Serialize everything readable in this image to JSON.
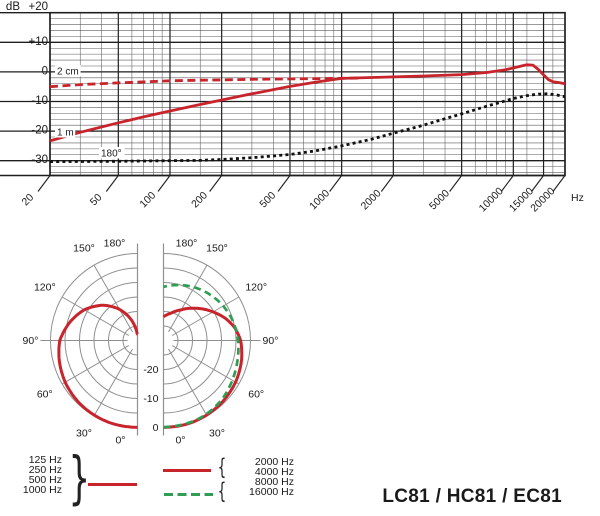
{
  "title": "LC81 / HC81 / EC81",
  "colors": {
    "red": "#c8242c",
    "green": "#2f9e54",
    "grid_major": "#1f1f1f",
    "grid_minor": "#5c5c5c",
    "polar_grid": "#8f8f8f",
    "text": "#1a1a1a",
    "background": "#ffffff"
  },
  "chart_data": [
    {
      "type": "line",
      "title": "Frequency response",
      "x_scale": "log",
      "xlim": [
        20,
        20000
      ],
      "ylim": [
        -35,
        20
      ],
      "xlabel": "Hz",
      "ylabel": "dB",
      "grid": true,
      "y_major_values": [
        20,
        10,
        0,
        -10,
        -20,
        -30
      ],
      "y_tick_labels": [
        "+20",
        "+10",
        "0",
        "-10",
        "-20",
        "-30"
      ],
      "x_ticks": [
        20,
        50,
        100,
        200,
        500,
        1000,
        2000,
        5000,
        10000,
        15000,
        20000
      ],
      "x_tick_labels": [
        "20",
        "50",
        "100",
        "200",
        "500",
        "1000",
        "2000",
        "5000",
        "10000",
        "15000",
        "20000"
      ],
      "x_minor_ticks": [
        30,
        40,
        60,
        70,
        80,
        90,
        150,
        300,
        400,
        600,
        700,
        800,
        900,
        1500,
        3000,
        4000,
        6000,
        7000,
        8000,
        9000,
        12000,
        17000
      ],
      "series": [
        {
          "name": "2 cm",
          "style": "dashed",
          "color": "#c8242c",
          "points": [
            [
              20,
              -5
            ],
            [
              30,
              -4.3
            ],
            [
              50,
              -3.7
            ],
            [
              100,
              -3
            ],
            [
              150,
              -2.8
            ],
            [
              200,
              -2.7
            ],
            [
              300,
              -2.5
            ],
            [
              500,
              -2.35
            ],
            [
              700,
              -2.25
            ],
            [
              1000,
              -2.15
            ],
            [
              1300,
              -2.05
            ]
          ]
        },
        {
          "name": "1 m",
          "style": "solid",
          "color": "#c8242c",
          "points": [
            [
              20,
              -23.3
            ],
            [
              30,
              -20.4
            ],
            [
              50,
              -17.2
            ],
            [
              70,
              -15.2
            ],
            [
              100,
              -13.2
            ],
            [
              150,
              -11
            ],
            [
              200,
              -9.5
            ],
            [
              300,
              -7.4
            ],
            [
              500,
              -4.9
            ],
            [
              700,
              -3.5
            ],
            [
              1000,
              -2.2
            ],
            [
              1500,
              -1.9
            ],
            [
              2000,
              -1.7
            ],
            [
              3000,
              -1.4
            ],
            [
              5000,
              -0.9
            ],
            [
              7000,
              -0.2
            ],
            [
              9000,
              0.7
            ],
            [
              11000,
              1.9
            ],
            [
              12000,
              2.4
            ],
            [
              13000,
              2.3
            ],
            [
              14000,
              0.8
            ],
            [
              15000,
              -1
            ],
            [
              16000,
              -2.6
            ],
            [
              17000,
              -3.3
            ],
            [
              18500,
              -3.6
            ],
            [
              20000,
              -4
            ]
          ]
        },
        {
          "name": "180°",
          "style": "dotted",
          "color": "#111111",
          "points": [
            [
              20,
              -30.3
            ],
            [
              50,
              -30.2
            ],
            [
              100,
              -30
            ],
            [
              150,
              -29.9
            ],
            [
              200,
              -29.6
            ],
            [
              300,
              -29
            ],
            [
              500,
              -27.9
            ],
            [
              700,
              -26.7
            ],
            [
              1000,
              -25
            ],
            [
              1500,
              -22.7
            ],
            [
              2000,
              -20.7
            ],
            [
              3000,
              -18
            ],
            [
              4000,
              -15.8
            ],
            [
              5000,
              -14.2
            ],
            [
              7000,
              -11.6
            ],
            [
              8500,
              -10.2
            ],
            [
              10000,
              -9
            ],
            [
              12000,
              -8
            ],
            [
              14000,
              -7.5
            ],
            [
              16000,
              -7.4
            ],
            [
              18000,
              -7.8
            ],
            [
              20000,
              -8.4
            ]
          ]
        }
      ]
    },
    {
      "type": "polar",
      "title": "Polar pattern",
      "range_db": 30,
      "rings_db": [
        0,
        -5,
        -10,
        -15,
        -20,
        -25
      ],
      "ring_label_values": [
        0,
        -10,
        -20
      ],
      "ring_labels": [
        "0",
        "-10",
        "-20"
      ],
      "angle_values": [
        0,
        30,
        60,
        90,
        120,
        150,
        180
      ],
      "angle_labels": [
        "0°",
        "30°",
        "60°",
        "90°",
        "120°",
        "150°",
        "180°"
      ],
      "left_half": {
        "series": [
          {
            "name": "125-1000 Hz",
            "style": "solid",
            "color": "#c8242c",
            "points": [
              [
                0,
                -0.05
              ],
              [
                20,
                -0.1
              ],
              [
                30,
                -0.25
              ],
              [
                45,
                -0.6
              ],
              [
                60,
                -1.2
              ],
              [
                75,
                -2.1
              ],
              [
                90,
                -3.2
              ],
              [
                105,
                -5.8
              ],
              [
                120,
                -8.8
              ],
              [
                135,
                -12.8
              ],
              [
                150,
                -17.6
              ],
              [
                165,
                -23.2
              ],
              [
                172,
                -26
              ],
              [
                180,
                -28.5
              ]
            ]
          }
        ]
      },
      "right_half": {
        "series": [
          {
            "name": "2000-4000 Hz",
            "style": "solid",
            "color": "#c8242c",
            "points": [
              [
                0,
                -0.05
              ],
              [
                20,
                -0.1
              ],
              [
                30,
                -0.3
              ],
              [
                45,
                -0.7
              ],
              [
                60,
                -1.3
              ],
              [
                75,
                -2.2
              ],
              [
                90,
                -3.4
              ],
              [
                100,
                -5
              ],
              [
                110,
                -7.4
              ],
              [
                120,
                -10.3
              ],
              [
                135,
                -14.3
              ],
              [
                150,
                -17.8
              ],
              [
                165,
                -20.3
              ],
              [
                180,
                -21.8
              ]
            ]
          },
          {
            "name": "8000-16000 Hz",
            "style": "dashed",
            "color": "#2f9e54",
            "points": [
              [
                0,
                -0.15
              ],
              [
                20,
                -0.35
              ],
              [
                30,
                -0.6
              ],
              [
                45,
                -1.4
              ],
              [
                60,
                -2.6
              ],
              [
                75,
                -3.6
              ],
              [
                90,
                -4.3
              ],
              [
                105,
                -5.1
              ],
              [
                120,
                -6.2
              ],
              [
                135,
                -7.5
              ],
              [
                150,
                -8.8
              ],
              [
                165,
                -10.2
              ],
              [
                180,
                -11.5
              ]
            ]
          }
        ]
      }
    }
  ],
  "legend": {
    "low_group": {
      "items": [
        "125 Hz",
        "250 Hz",
        "500 Hz",
        "1000 Hz"
      ],
      "brace": "}",
      "line_style": "solid",
      "line_color": "#c8242c"
    },
    "high_group": {
      "solid": {
        "items": [
          "2000 Hz",
          "4000 Hz"
        ],
        "brace": "{",
        "line_style": "solid",
        "line_color": "#c8242c"
      },
      "dashed": {
        "items": [
          "8000 Hz",
          "16000 Hz"
        ],
        "brace": "{",
        "line_style": "dashed",
        "line_color": "#2f9e54"
      }
    }
  }
}
